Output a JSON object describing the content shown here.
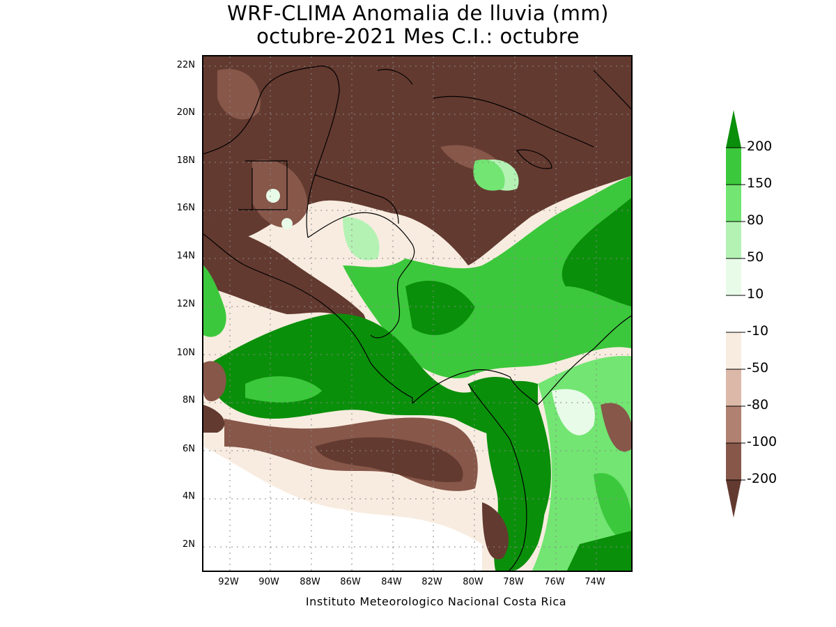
{
  "title_line1": "WRF-CLIMA Anomalia de lluvia (mm)",
  "title_line2": "octubre-2021 Mes C.I.: octubre",
  "credit": "Instituto Meteorologico Nacional Costa Rica",
  "lat_ticks": [
    "22N",
    "20N",
    "18N",
    "16N",
    "14N",
    "12N",
    "10N",
    "8N",
    "6N",
    "4N",
    "2N"
  ],
  "lon_ticks": [
    "92W",
    "90W",
    "88W",
    "86W",
    "84W",
    "82W",
    "80W",
    "78W",
    "76W",
    "74W"
  ],
  "colorbar": {
    "labels": [
      "200",
      "150",
      "80",
      "50",
      "10",
      "-10",
      "-50",
      "-80",
      "-100",
      "-200"
    ],
    "colors": [
      "#0a8f0a",
      "#3cc83c",
      "#72e572",
      "#b4f2b4",
      "#e8fbe8",
      "#ffffff",
      "#f8ece0",
      "#dcb8a8",
      "#b08070",
      "#87574a",
      "#633a30"
    ]
  }
}
